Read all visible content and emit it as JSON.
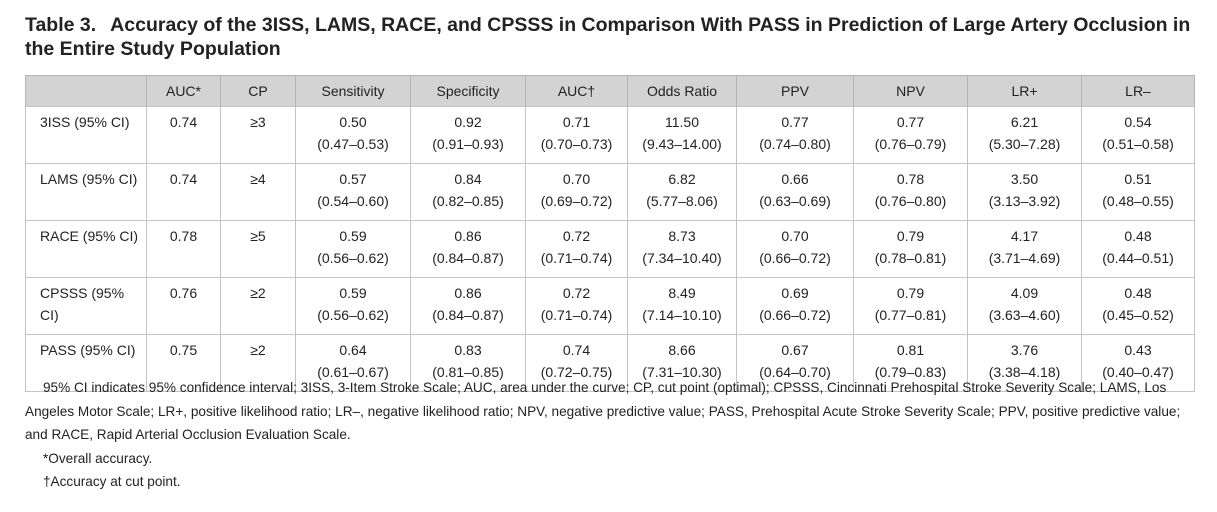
{
  "title": {
    "number": "Table 3.",
    "text": "Accuracy of the 3ISS, LAMS, RACE, and CPSSS in Comparison With PASS in Prediction of Large Artery Occlusion in the Entire Study Population"
  },
  "table": {
    "headers": [
      "",
      "AUC*",
      "CP",
      "Sensitivity",
      "Specificity",
      "AUC†",
      "Odds Ratio",
      "PPV",
      "NPV",
      "LR+",
      "LR–"
    ],
    "rows": [
      {
        "label": "3ISS (95% CI)",
        "auc": "0.74",
        "cp": "≥3",
        "sensitivity": [
          "0.50",
          "(0.47–0.53)"
        ],
        "specificity": [
          "0.92",
          "(0.91–0.93)"
        ],
        "auc_cut": [
          "0.71",
          "(0.70–0.73)"
        ],
        "odds_ratio": [
          "11.50",
          "(9.43–14.00)"
        ],
        "ppv": [
          "0.77",
          "(0.74–0.80)"
        ],
        "npv": [
          "0.77",
          "(0.76–0.79)"
        ],
        "lr_pos": [
          "6.21",
          "(5.30–7.28)"
        ],
        "lr_neg": [
          "0.54",
          "(0.51–0.58)"
        ]
      },
      {
        "label": "LAMS (95% CI)",
        "auc": "0.74",
        "cp": "≥4",
        "sensitivity": [
          "0.57",
          "(0.54–0.60)"
        ],
        "specificity": [
          "0.84",
          "(0.82–0.85)"
        ],
        "auc_cut": [
          "0.70",
          "(0.69–0.72)"
        ],
        "odds_ratio": [
          "6.82",
          "(5.77–8.06)"
        ],
        "ppv": [
          "0.66",
          "(0.63–0.69)"
        ],
        "npv": [
          "0.78",
          "(0.76–0.80)"
        ],
        "lr_pos": [
          "3.50",
          "(3.13–3.92)"
        ],
        "lr_neg": [
          "0.51",
          "(0.48–0.55)"
        ]
      },
      {
        "label": "RACE (95% CI)",
        "auc": "0.78",
        "cp": "≥5",
        "sensitivity": [
          "0.59",
          "(0.56–0.62)"
        ],
        "specificity": [
          "0.86",
          "(0.84–0.87)"
        ],
        "auc_cut": [
          "0.72",
          "(0.71–0.74)"
        ],
        "odds_ratio": [
          "8.73",
          "(7.34–10.40)"
        ],
        "ppv": [
          "0.70",
          "(0.66–0.72)"
        ],
        "npv": [
          "0.79",
          "(0.78–0.81)"
        ],
        "lr_pos": [
          "4.17",
          "(3.71–4.69)"
        ],
        "lr_neg": [
          "0.48",
          "(0.44–0.51)"
        ]
      },
      {
        "label": "CPSSS (95% CI)",
        "auc": "0.76",
        "cp": "≥2",
        "sensitivity": [
          "0.59",
          "(0.56–0.62)"
        ],
        "specificity": [
          "0.86",
          "(0.84–0.87)"
        ],
        "auc_cut": [
          "0.72",
          "(0.71–0.74)"
        ],
        "odds_ratio": [
          "8.49",
          "(7.14–10.10)"
        ],
        "ppv": [
          "0.69",
          "(0.66–0.72)"
        ],
        "npv": [
          "0.79",
          "(0.77–0.81)"
        ],
        "lr_pos": [
          "4.09",
          "(3.63–4.60)"
        ],
        "lr_neg": [
          "0.48",
          "(0.45–0.52)"
        ]
      },
      {
        "label": "PASS (95% CI)",
        "auc": "0.75",
        "cp": "≥2",
        "sensitivity": [
          "0.64",
          "(0.61–0.67)"
        ],
        "specificity": [
          "0.83",
          "(0.81–0.85)"
        ],
        "auc_cut": [
          "0.74",
          "(0.72–0.75)"
        ],
        "odds_ratio": [
          "8.66",
          "(7.31–10.30)"
        ],
        "ppv": [
          "0.67",
          "(0.64–0.70)"
        ],
        "npv": [
          "0.81",
          "(0.79–0.83)"
        ],
        "lr_pos": [
          "3.76",
          "(3.38–4.18)"
        ],
        "lr_neg": [
          "0.43",
          "(0.40–0.47)"
        ]
      }
    ]
  },
  "notes": {
    "abbreviations": "95% CI indicates 95% confidence interval; 3ISS, 3-Item Stroke Scale; AUC, area under the curve; CP, cut point (optimal); CPSSS, Cincinnati Prehospital Stroke Severity Scale; LAMS, Los Angeles Motor Scale; LR+, positive likelihood ratio; LR–, negative likelihood ratio; NPV, negative predictive value; PASS, Prehospital Acute Stroke Severity Scale; PPV, positive predictive value; and RACE, Rapid Arterial Occlusion Evaluation Scale.",
    "footnote_star": "*Overall accuracy.",
    "footnote_dagger": "†Accuracy at cut point."
  }
}
